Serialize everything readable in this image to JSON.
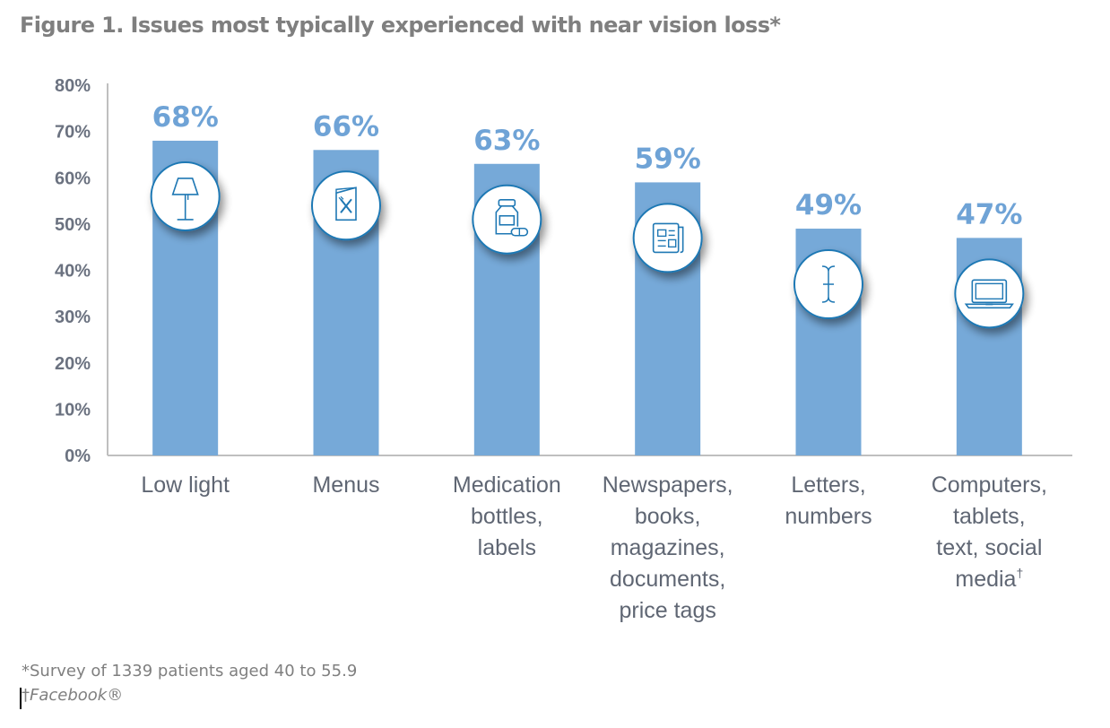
{
  "chart_data": {
    "type": "bar",
    "title": "Figure 1. Issues most typically experienced with near vision loss*",
    "xlabel": "",
    "ylabel": "",
    "ylim": [
      0,
      80
    ],
    "yticks": [
      "0%",
      "10%",
      "20%",
      "30%",
      "40%",
      "50%",
      "60%",
      "70%",
      "80%"
    ],
    "ytick_values": [
      0,
      10,
      20,
      30,
      40,
      50,
      60,
      70,
      80
    ],
    "grid": false,
    "categories": [
      [
        "Low light"
      ],
      [
        "Menus"
      ],
      [
        "Medication",
        "bottles,",
        "labels"
      ],
      [
        "Newspapers,",
        "books,",
        "magazines,",
        "documents,",
        "price tags"
      ],
      [
        "Letters,",
        "numbers"
      ],
      [
        "Computers,",
        "tablets,",
        "text, social",
        "media†"
      ]
    ],
    "values": [
      68,
      66,
      63,
      59,
      49,
      47
    ],
    "data_labels": [
      "68%",
      "66%",
      "63%",
      "59%",
      "49%",
      "47%"
    ],
    "icons": [
      "lamp-icon",
      "menu-icon",
      "medication-bottle-icon",
      "newspaper-icon",
      "text-cursor-icon",
      "laptop-icon"
    ],
    "colors": {
      "bar": "#76a9d8",
      "label": "#6fa3d6",
      "icon_stroke": "#1f78b4",
      "axis": "#bfbfbf"
    }
  },
  "footnotes": {
    "survey": "*Survey of 1339 patients aged 40 to 55.9",
    "dagger": "†",
    "facebook": "Facebook®"
  }
}
